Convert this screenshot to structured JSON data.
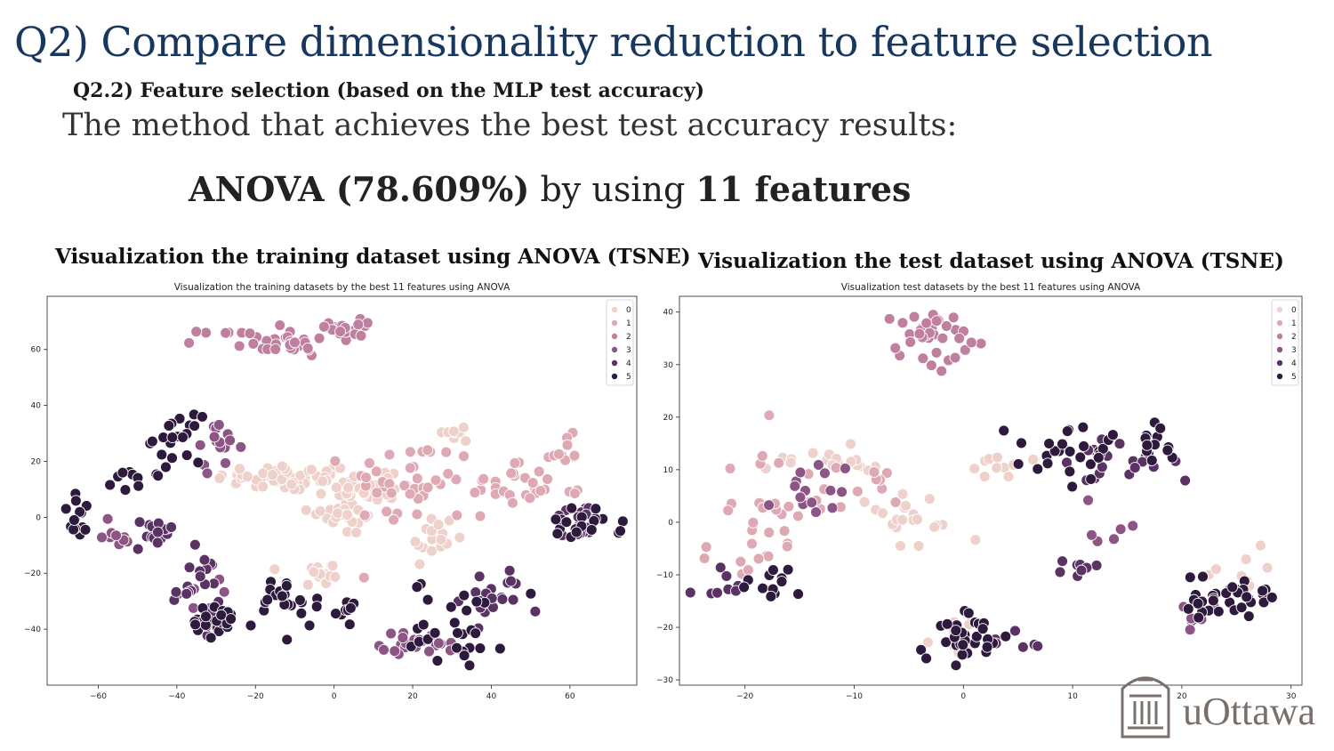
{
  "slide": {
    "title": "Q2) Compare dimensionality reduction to feature selection",
    "subtitle": "Q2.2) Feature selection (based on the MLP test accuracy)",
    "description": "The method that achieves the best test accuracy results:",
    "result_method": "ANOVA (78.609%)",
    "result_mid": " by using ",
    "result_features": "11 features",
    "caption_left": "Visualization the training dataset using ANOVA (TSNE)",
    "caption_right": "Visualization the test dataset using ANOVA (TSNE)",
    "logo_text": "uOttawa",
    "logo_icon": "building-columns-icon"
  },
  "colors": {
    "title": "#17375e",
    "class_palette": [
      "#efd1cb",
      "#dea9b3",
      "#c07f9f",
      "#8d5585",
      "#5a3364",
      "#2d1a3d"
    ]
  },
  "chart_data": [
    {
      "type": "scatter",
      "title": "Visualization the training datasets by the best 11 features using ANOVA",
      "xlabel": "",
      "ylabel": "",
      "xlim": [
        -73,
        77
      ],
      "ylim": [
        -60,
        79
      ],
      "xticks": [
        -60,
        -40,
        -20,
        0,
        20,
        40,
        60
      ],
      "yticks": [
        -40,
        -20,
        0,
        20,
        40,
        60
      ],
      "grid": false,
      "legend_position": "top-right",
      "series": [
        {
          "name": "0",
          "clusters": [
            {
              "x": -12,
              "y": 14,
              "sx": 9,
              "sy": 2.5,
              "n": 55
            },
            {
              "x": 2,
              "y": 5,
              "sx": 5,
              "sy": 6,
              "n": 40
            },
            {
              "x": -3,
              "y": -20,
              "sx": 3,
              "sy": 3,
              "n": 15
            },
            {
              "x": 25,
              "y": -8,
              "sx": 3,
              "sy": 5,
              "n": 20
            },
            {
              "x": 32,
              "y": 30,
              "sx": 3,
              "sy": 2,
              "n": 10
            },
            {
              "x": 10,
              "y": 12,
              "sx": 6,
              "sy": 3,
              "n": 20
            }
          ]
        },
        {
          "name": "1",
          "clusters": [
            {
              "x": 20,
              "y": 12,
              "sx": 8,
              "sy": 8,
              "n": 40
            },
            {
              "x": 45,
              "y": 12,
              "sx": 5,
              "sy": 5,
              "n": 20
            },
            {
              "x": 58,
              "y": 23,
              "sx": 3,
              "sy": 3,
              "n": 10
            },
            {
              "x": 50,
              "y": 9,
              "sx": 7,
              "sy": 2,
              "n": 10
            }
          ]
        },
        {
          "name": "2",
          "clusters": [
            {
              "x": -22,
              "y": 64,
              "sx": 6,
              "sy": 2,
              "n": 20
            },
            {
              "x": -10,
              "y": 61,
              "sx": 4,
              "sy": 3,
              "n": 15
            },
            {
              "x": 5,
              "y": 68,
              "sx": 3,
              "sy": 3,
              "n": 20
            }
          ]
        },
        {
          "name": "3",
          "clusters": [
            {
              "x": -30,
              "y": 25,
              "sx": 3,
              "sy": 4,
              "n": 15
            },
            {
              "x": -55,
              "y": -5,
              "sx": 3,
              "sy": 3,
              "n": 10
            },
            {
              "x": 22,
              "y": -45,
              "sx": 5,
              "sy": 2,
              "n": 25
            },
            {
              "x": -35,
              "y": -30,
              "sx": 3,
              "sy": 4,
              "n": 10
            }
          ]
        },
        {
          "name": "4",
          "clusters": [
            {
              "x": -45,
              "y": -6,
              "sx": 3,
              "sy": 3,
              "n": 15
            },
            {
              "x": -35,
              "y": -25,
              "sx": 3,
              "sy": 6,
              "n": 20
            },
            {
              "x": 62,
              "y": -2,
              "sx": 4,
              "sy": 4,
              "n": 15
            },
            {
              "x": 40,
              "y": -28,
              "sx": 4,
              "sy": 5,
              "n": 20
            }
          ]
        },
        {
          "name": "5",
          "clusters": [
            {
              "x": -40,
              "y": 28,
              "sx": 3,
              "sy": 4,
              "n": 20
            },
            {
              "x": -50,
              "y": 13,
              "sx": 3,
              "sy": 2,
              "n": 10
            },
            {
              "x": -65,
              "y": 0,
              "sx": 2,
              "sy": 4,
              "n": 15
            },
            {
              "x": -30,
              "y": -38,
              "sx": 5,
              "sy": 3,
              "n": 25
            },
            {
              "x": -12,
              "y": -30,
              "sx": 4,
              "sy": 5,
              "n": 20
            },
            {
              "x": 32,
              "y": -38,
              "sx": 6,
              "sy": 8,
              "n": 30
            },
            {
              "x": 63,
              "y": -3,
              "sx": 5,
              "sy": 3,
              "n": 20
            },
            {
              "x": 0,
              "y": -33,
              "sx": 3,
              "sy": 3,
              "n": 10
            }
          ]
        }
      ]
    },
    {
      "type": "scatter",
      "title": "Visualization test datasets  by the best 11 features using ANOVA",
      "xlabel": "",
      "ylabel": "",
      "xlim": [
        -26,
        31
      ],
      "ylim": [
        -31,
        43
      ],
      "xticks": [
        -20,
        -10,
        0,
        10,
        20,
        30
      ],
      "yticks": [
        -30,
        -20,
        -10,
        0,
        10,
        20,
        30,
        40
      ],
      "grid": false,
      "legend_position": "top-right",
      "series": [
        {
          "name": "0",
          "clusters": [
            {
              "x": -12,
              "y": 12,
              "sx": 3,
              "sy": 1.5,
              "n": 20
            },
            {
              "x": -5,
              "y": 0,
              "sx": 3,
              "sy": 3,
              "n": 20
            },
            {
              "x": 2,
              "y": 10,
              "sx": 2,
              "sy": 1,
              "n": 10
            },
            {
              "x": -1,
              "y": -22,
              "sx": 1,
              "sy": 2,
              "n": 8
            },
            {
              "x": 25,
              "y": -8,
              "sx": 2,
              "sy": 2,
              "n": 8
            }
          ]
        },
        {
          "name": "1",
          "clusters": [
            {
              "x": -17,
              "y": 2,
              "sx": 3,
              "sy": 6,
              "n": 25
            },
            {
              "x": -9,
              "y": 7,
              "sx": 2,
              "sy": 2,
              "n": 10
            },
            {
              "x": -19,
              "y": -6,
              "sx": 2,
              "sy": 3,
              "n": 10
            }
          ]
        },
        {
          "name": "2",
          "clusters": [
            {
              "x": -3,
              "y": 36,
              "sx": 2.5,
              "sy": 3,
              "n": 35
            }
          ]
        },
        {
          "name": "3",
          "clusters": [
            {
              "x": -14,
              "y": 5,
              "sx": 2,
              "sy": 3,
              "n": 15
            },
            {
              "x": 14,
              "y": -2,
              "sx": 2,
              "sy": 2,
              "n": 6
            },
            {
              "x": 20,
              "y": -18,
              "sx": 1.5,
              "sy": 1,
              "n": 6
            }
          ]
        },
        {
          "name": "4",
          "clusters": [
            {
              "x": 13,
              "y": 12,
              "sx": 3,
              "sy": 2,
              "n": 15
            },
            {
              "x": 10,
              "y": -9,
              "sx": 2,
              "sy": 1,
              "n": 8
            },
            {
              "x": 5,
              "y": -23,
              "sx": 2,
              "sy": 1,
              "n": 8
            },
            {
              "x": 18,
              "y": 10,
              "sx": 1.5,
              "sy": 2,
              "n": 6
            },
            {
              "x": -22,
              "y": -12,
              "sx": 1.5,
              "sy": 2,
              "n": 8
            }
          ]
        },
        {
          "name": "5",
          "clusters": [
            {
              "x": 10,
              "y": 13,
              "sx": 3,
              "sy": 2.5,
              "n": 25
            },
            {
              "x": 17,
              "y": 15,
              "sx": 2,
              "sy": 2,
              "n": 15
            },
            {
              "x": -18,
              "y": -12,
              "sx": 1.5,
              "sy": 1.5,
              "n": 15
            },
            {
              "x": 0,
              "y": -22,
              "sx": 1.5,
              "sy": 2.5,
              "n": 30
            },
            {
              "x": 24,
              "y": -14,
              "sx": 2.5,
              "sy": 2,
              "n": 35
            }
          ]
        }
      ]
    }
  ]
}
